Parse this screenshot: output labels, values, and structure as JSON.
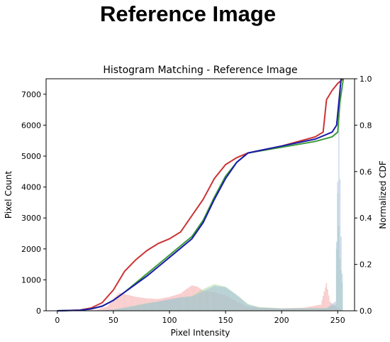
{
  "header": {
    "title": "Reference Image"
  },
  "chart_data": {
    "type": "histogram-with-cdf",
    "title": "Histogram Matching - Reference Image",
    "xlabel": "Pixel Intensity",
    "ylabel": "Pixel Count",
    "y2label": "Normalized CDF",
    "xlim": [
      -10,
      265
    ],
    "ylim": [
      0,
      7500
    ],
    "y2lim": [
      0,
      1
    ],
    "xticks": [
      "0",
      "50",
      "100",
      "150",
      "200",
      "250"
    ],
    "yticks": [
      "0",
      "1000",
      "2000",
      "3000",
      "4000",
      "5000",
      "6000",
      "7000"
    ],
    "y2ticks": [
      "0.0",
      "0.2",
      "0.4",
      "0.6",
      "0.8",
      "1.0"
    ],
    "grid": false,
    "histograms": [
      {
        "channel": "red",
        "color": "#f4a6a6",
        "points": [
          [
            0,
            0
          ],
          [
            20,
            5
          ],
          [
            35,
            30
          ],
          [
            45,
            150
          ],
          [
            50,
            400
          ],
          [
            55,
            580
          ],
          [
            60,
            540
          ],
          [
            70,
            450
          ],
          [
            80,
            400
          ],
          [
            90,
            380
          ],
          [
            100,
            450
          ],
          [
            110,
            560
          ],
          [
            115,
            700
          ],
          [
            120,
            820
          ],
          [
            125,
            780
          ],
          [
            130,
            650
          ],
          [
            140,
            600
          ],
          [
            150,
            500
          ],
          [
            160,
            300
          ],
          [
            170,
            120
          ],
          [
            200,
            80
          ],
          [
            220,
            100
          ],
          [
            235,
            200
          ],
          [
            240,
            900
          ],
          [
            243,
            300
          ],
          [
            250,
            80
          ],
          [
            255,
            0
          ]
        ]
      },
      {
        "channel": "green",
        "color": "#a9d8a0",
        "points": [
          [
            0,
            0
          ],
          [
            30,
            5
          ],
          [
            50,
            40
          ],
          [
            60,
            100
          ],
          [
            70,
            180
          ],
          [
            80,
            250
          ],
          [
            90,
            300
          ],
          [
            100,
            350
          ],
          [
            110,
            420
          ],
          [
            120,
            480
          ],
          [
            130,
            700
          ],
          [
            140,
            860
          ],
          [
            150,
            780
          ],
          [
            160,
            520
          ],
          [
            170,
            220
          ],
          [
            180,
            120
          ],
          [
            200,
            80
          ],
          [
            240,
            90
          ],
          [
            248,
            200
          ],
          [
            250,
            3800
          ],
          [
            252,
            1700
          ],
          [
            254,
            900
          ],
          [
            255,
            0
          ]
        ]
      },
      {
        "channel": "blue",
        "color": "#a6bde0",
        "points": [
          [
            0,
            0
          ],
          [
            30,
            5
          ],
          [
            50,
            40
          ],
          [
            60,
            100
          ],
          [
            70,
            160
          ],
          [
            80,
            230
          ],
          [
            90,
            300
          ],
          [
            100,
            380
          ],
          [
            110,
            440
          ],
          [
            120,
            460
          ],
          [
            130,
            620
          ],
          [
            140,
            800
          ],
          [
            150,
            760
          ],
          [
            160,
            500
          ],
          [
            170,
            200
          ],
          [
            180,
            100
          ],
          [
            200,
            70
          ],
          [
            240,
            80
          ],
          [
            248,
            300
          ],
          [
            251,
            6100
          ],
          [
            253,
            2400
          ],
          [
            255,
            0
          ]
        ]
      }
    ],
    "cdf_series": [
      {
        "channel": "red",
        "color": "#cc3333",
        "points": [
          [
            0,
            0
          ],
          [
            20,
            0.003
          ],
          [
            30,
            0.012
          ],
          [
            40,
            0.035
          ],
          [
            50,
            0.09
          ],
          [
            60,
            0.17
          ],
          [
            70,
            0.22
          ],
          [
            80,
            0.26
          ],
          [
            90,
            0.29
          ],
          [
            100,
            0.31
          ],
          [
            110,
            0.34
          ],
          [
            120,
            0.41
          ],
          [
            130,
            0.48
          ],
          [
            140,
            0.57
          ],
          [
            150,
            0.63
          ],
          [
            160,
            0.66
          ],
          [
            170,
            0.68
          ],
          [
            200,
            0.71
          ],
          [
            230,
            0.75
          ],
          [
            237,
            0.77
          ],
          [
            240,
            0.91
          ],
          [
            245,
            0.95
          ],
          [
            250,
            0.98
          ],
          [
            255,
            1.0
          ]
        ]
      },
      {
        "channel": "green",
        "color": "#3a9a3a",
        "points": [
          [
            0,
            0
          ],
          [
            20,
            0.002
          ],
          [
            30,
            0.008
          ],
          [
            40,
            0.02
          ],
          [
            50,
            0.045
          ],
          [
            60,
            0.08
          ],
          [
            70,
            0.12
          ],
          [
            80,
            0.16
          ],
          [
            90,
            0.2
          ],
          [
            100,
            0.24
          ],
          [
            110,
            0.28
          ],
          [
            120,
            0.32
          ],
          [
            130,
            0.39
          ],
          [
            140,
            0.49
          ],
          [
            150,
            0.58
          ],
          [
            160,
            0.64
          ],
          [
            170,
            0.68
          ],
          [
            200,
            0.705
          ],
          [
            230,
            0.73
          ],
          [
            245,
            0.75
          ],
          [
            250,
            0.77
          ],
          [
            252,
            0.9
          ],
          [
            255,
            1.0
          ]
        ]
      },
      {
        "channel": "blue",
        "color": "#1a1aaa",
        "points": [
          [
            0,
            0
          ],
          [
            20,
            0.002
          ],
          [
            30,
            0.008
          ],
          [
            40,
            0.02
          ],
          [
            50,
            0.045
          ],
          [
            60,
            0.08
          ],
          [
            70,
            0.115
          ],
          [
            80,
            0.15
          ],
          [
            90,
            0.19
          ],
          [
            100,
            0.23
          ],
          [
            110,
            0.27
          ],
          [
            120,
            0.31
          ],
          [
            130,
            0.38
          ],
          [
            140,
            0.48
          ],
          [
            150,
            0.57
          ],
          [
            160,
            0.64
          ],
          [
            170,
            0.68
          ],
          [
            200,
            0.71
          ],
          [
            230,
            0.74
          ],
          [
            245,
            0.77
          ],
          [
            249,
            0.8
          ],
          [
            251,
            0.9
          ],
          [
            253,
            1.0
          ]
        ]
      }
    ]
  }
}
